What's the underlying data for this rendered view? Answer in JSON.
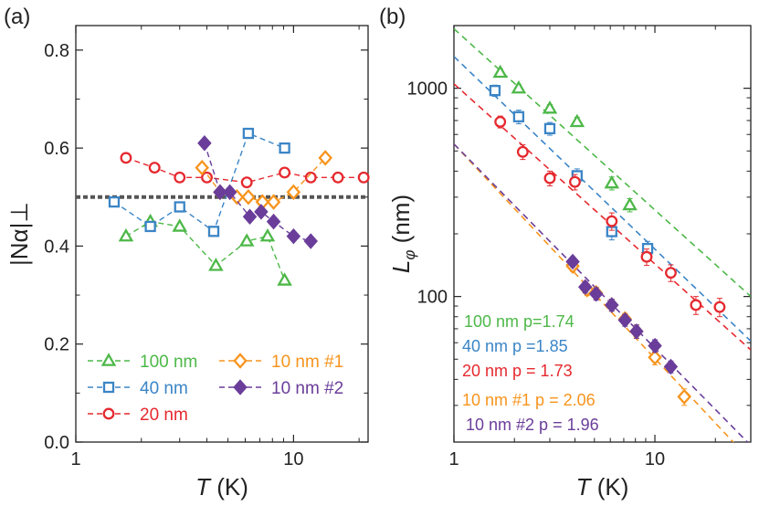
{
  "chart_data": [
    {
      "panel": "(a)",
      "type": "line",
      "xscale": "log",
      "xlim": [
        1,
        22
      ],
      "ylim": [
        0.0,
        0.85
      ],
      "xlabel_italic": "T",
      "xlabel_unit": " (K)",
      "ylabel": "|Nα|⊥",
      "xticks": [
        {
          "value": 1,
          "label": "1"
        },
        {
          "value": 10,
          "label": "10"
        }
      ],
      "yticks": [
        {
          "value": 0.0,
          "label": "0.0"
        },
        {
          "value": 0.2,
          "label": "0.2"
        },
        {
          "value": 0.4,
          "label": "0.4"
        },
        {
          "value": 0.6,
          "label": "0.6"
        },
        {
          "value": 0.8,
          "label": "0.8"
        }
      ],
      "reference_line": {
        "y": 0.5,
        "color": "#555555",
        "style": "dotted"
      },
      "series": [
        {
          "name": "100 nm",
          "marker": "triangle",
          "filled": false,
          "color": "#4DB848",
          "x": [
            1.7,
            2.2,
            3.0,
            4.4,
            6.1,
            7.6,
            9.1
          ],
          "y": [
            0.42,
            0.45,
            0.44,
            0.36,
            0.41,
            0.42,
            0.33
          ]
        },
        {
          "name": "40 nm",
          "marker": "square",
          "filled": false,
          "color": "#3B85C6",
          "x": [
            1.5,
            2.2,
            3.0,
            4.3,
            6.2,
            9.1
          ],
          "y": [
            0.49,
            0.44,
            0.48,
            0.43,
            0.63,
            0.6
          ]
        },
        {
          "name": "20 nm",
          "marker": "circle",
          "filled": false,
          "color": "#E5292F",
          "x": [
            1.7,
            2.3,
            3.0,
            4.0,
            6.1,
            9.1,
            12.0,
            16.0,
            21.0
          ],
          "y": [
            0.58,
            0.56,
            0.54,
            0.54,
            0.53,
            0.55,
            0.54,
            0.54,
            0.54
          ]
        },
        {
          "name": "10 nm #1",
          "marker": "diamond",
          "filled": false,
          "color": "#F7941D",
          "x": [
            3.8,
            4.6,
            5.5,
            6.2,
            7.2,
            8.1,
            10.0,
            14.0
          ],
          "y": [
            0.56,
            0.51,
            0.5,
            0.5,
            0.49,
            0.49,
            0.51,
            0.58
          ]
        },
        {
          "name": "10 nm #2",
          "marker": "diamond",
          "filled": true,
          "color": "#6A3D9A",
          "x": [
            3.9,
            4.6,
            5.1,
            6.3,
            7.1,
            8.1,
            10.0,
            12.0
          ],
          "y": [
            0.61,
            0.51,
            0.51,
            0.46,
            0.47,
            0.45,
            0.42,
            0.41
          ]
        }
      ],
      "legend": {
        "placement": "bottom-left",
        "columns": 2,
        "order": [
          "100 nm",
          "40 nm",
          "20 nm",
          "10 nm #1",
          "10 nm #2"
        ]
      }
    },
    {
      "panel": "(b)",
      "type": "scatter",
      "xscale": "log",
      "yscale": "log",
      "xlim": [
        1,
        30
      ],
      "ylim": [
        20,
        2000
      ],
      "xlabel_italic": "T",
      "xlabel_unit": " (K)",
      "ylabel_symbol": "L",
      "ylabel_subscript": "φ",
      "ylabel_unit": " (nm)",
      "xticks": [
        {
          "value": 1,
          "label": "1"
        },
        {
          "value": 10,
          "label": "10"
        }
      ],
      "yticks": [
        {
          "value": 100,
          "label": "100"
        },
        {
          "value": 1000,
          "label": "1000"
        }
      ],
      "series": [
        {
          "name": "100 nm",
          "fit_label": "100 nm p=1.74",
          "p": 1.74,
          "fit_prefactor": 1930,
          "marker": "triangle",
          "filled": false,
          "color": "#4DB848",
          "x": [
            1.7,
            2.1,
            3.0,
            4.1,
            6.1,
            7.5
          ],
          "y": [
            1190,
            1000,
            800,
            690,
            350,
            275
          ],
          "err": [
            50,
            40,
            35,
            35,
            25,
            20
          ]
        },
        {
          "name": "40 nm",
          "fit_label": "40 nm   p =1.85",
          "p": 1.85,
          "fit_prefactor": 1420,
          "marker": "square",
          "filled": false,
          "color": "#3B85C6",
          "x": [
            1.6,
            2.1,
            3.0,
            4.1,
            6.1,
            9.2
          ],
          "y": [
            975,
            730,
            640,
            380,
            205,
            170
          ],
          "err": [
            60,
            55,
            45,
            30,
            18,
            14
          ]
        },
        {
          "name": "20 nm",
          "fit_label": "20 nm   p = 1.73",
          "p": 1.73,
          "fit_prefactor": 1050,
          "marker": "circle",
          "filled": false,
          "color": "#E5292F",
          "x": [
            1.7,
            2.2,
            3.0,
            4.0,
            6.1,
            9.1,
            12.0,
            16.0,
            21.0
          ],
          "y": [
            690,
            495,
            370,
            355,
            230,
            155,
            130,
            91,
            89
          ],
          "err": [
            45,
            40,
            30,
            30,
            22,
            14,
            12,
            9,
            9
          ]
        },
        {
          "name": "10 nm #1",
          "fit_label": "10 nm #1 p = 2.06",
          "p": 2.06,
          "fit_prefactor": 540,
          "marker": "diamond",
          "filled": false,
          "color": "#F7941D",
          "x": [
            3.9,
            4.6,
            5.1,
            6.1,
            7.1,
            8.1,
            10.0,
            14.0
          ],
          "y": [
            140,
            108,
            104,
            91,
            78,
            68,
            51,
            33
          ],
          "err": [
            8,
            7,
            7,
            6,
            5,
            5,
            4,
            3
          ]
        },
        {
          "name": "10 nm #2",
          "fit_label": "10 nm #2 p = 1.96",
          "p": 1.96,
          "fit_prefactor": 540,
          "marker": "diamond",
          "filled": true,
          "color": "#6A3D9A",
          "x": [
            3.9,
            4.5,
            5.1,
            6.1,
            7.1,
            8.1,
            10.0,
            12.0
          ],
          "y": [
            147,
            111,
            103,
            91,
            77,
            68,
            58,
            46
          ],
          "err": [
            8,
            7,
            7,
            6,
            5,
            5,
            4,
            3
          ]
        }
      ],
      "legend": {
        "placement": "bottom-left",
        "order": [
          "100 nm",
          "40 nm",
          "20 nm",
          "10 nm #1",
          "10 nm #2"
        ]
      }
    }
  ]
}
